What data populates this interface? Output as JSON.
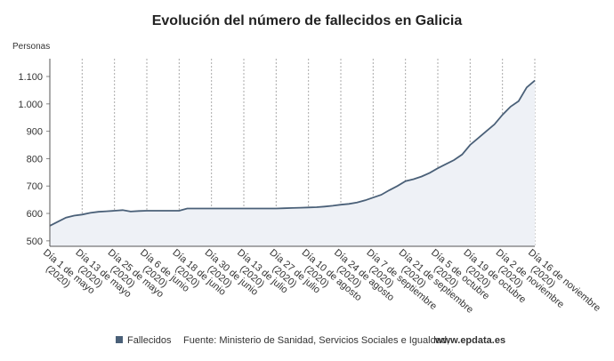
{
  "chart_data": {
    "type": "area",
    "title": "Evolución del número de fallecidos en Galicia",
    "y_label": "Personas",
    "categories": [
      "Día 1 de mayo (2020)",
      null,
      null,
      null,
      "Día 13 de mayo (2020)",
      null,
      null,
      null,
      "Día 25 de mayo (2020)",
      null,
      null,
      null,
      "Día 6 de junio (2020)",
      null,
      null,
      null,
      "Día 18 de junio (2020)",
      null,
      null,
      null,
      "Día 30 de junio (2020)",
      null,
      null,
      null,
      "Día 13 de julio (2020)",
      null,
      null,
      null,
      "Día 27 de julio (2020)",
      null,
      null,
      null,
      "Día 10 de agosto (2020)",
      null,
      null,
      null,
      "Día 24 de agosto (2020)",
      null,
      null,
      null,
      "Día 7 de septiembre (2020)",
      null,
      null,
      null,
      "Día 21 de septiembre (2020)",
      null,
      null,
      null,
      "Día 5 de octubre (2020)",
      null,
      null,
      null,
      "Día 19 de octubre (2020)",
      null,
      null,
      null,
      "Día 2 de noviembre (2020)",
      null,
      null,
      null,
      "Día 16 de noviembre (2020)"
    ],
    "series": [
      {
        "name": "Fallecidos",
        "color": "#4a6078",
        "fill": "#eef1f6",
        "values": [
          555,
          570,
          585,
          592,
          596,
          602,
          606,
          608,
          610,
          612,
          607,
          609,
          610,
          610,
          610,
          610,
          610,
          618,
          618,
          618,
          618,
          618,
          618,
          618,
          618,
          618,
          618,
          618,
          618,
          619,
          620,
          621,
          622,
          623,
          625,
          628,
          632,
          635,
          640,
          648,
          658,
          668,
          685,
          700,
          718,
          725,
          735,
          748,
          765,
          780,
          795,
          815,
          850,
          875,
          900,
          925,
          960,
          990,
          1010,
          1060,
          1085
        ]
      }
    ],
    "ylim": [
      480,
      1165
    ],
    "yticks": [
      500,
      600,
      700,
      800,
      900,
      {
        "value": 1000,
        "label": "1.000"
      },
      {
        "value": 1100,
        "label": "1.100"
      }
    ],
    "grid": true,
    "source": "Fuente: Ministerio de Sanidad, Servicios Sociales e Igualdad,",
    "source_link": "www.epdata.es"
  }
}
